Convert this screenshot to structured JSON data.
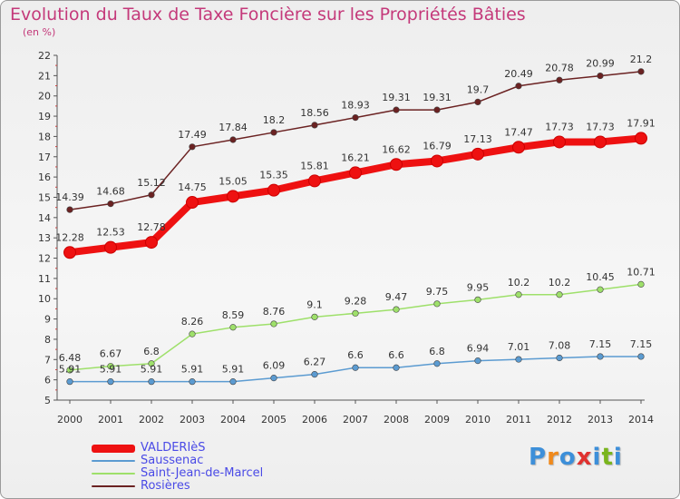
{
  "title": "Evolution du Taux de Taxe Foncière sur les Propriétés Bâties",
  "unit": "(en %)",
  "logo": {
    "letters": [
      "P",
      "r",
      "o",
      "x",
      "i",
      "t",
      "i"
    ],
    "colors": [
      "#3d8fd9",
      "#f08a1c",
      "#3d8fd9",
      "#e0312f",
      "#3d8fd9",
      "#7ab51d",
      "#3d8fd9"
    ]
  },
  "chart_data": {
    "type": "line",
    "title": "Evolution du Taux de Taxe Foncière sur les Propriétés Bâties",
    "ylabel": "(en %)",
    "xlabel": "",
    "x": [
      "2000",
      "2001",
      "2002",
      "2003",
      "2004",
      "2005",
      "2006",
      "2007",
      "2008",
      "2009",
      "2010",
      "2011",
      "2012",
      "2013",
      "2014"
    ],
    "ylim": [
      5,
      22
    ],
    "yticks": [
      "5",
      "6",
      "7",
      "8",
      "9",
      "10",
      "11",
      "12",
      "13",
      "14",
      "15",
      "16",
      "17",
      "18",
      "19",
      "20",
      "21",
      "22"
    ],
    "grid": false,
    "legend_position": "bottom-left",
    "series": [
      {
        "name": "VALDERIèS",
        "color": "#ee1111",
        "width": 8,
        "values": [
          12.28,
          12.53,
          12.78,
          14.75,
          15.05,
          15.35,
          15.81,
          16.21,
          16.62,
          16.79,
          17.13,
          17.47,
          17.73,
          17.73,
          17.91
        ],
        "labels": [
          "12.28",
          "12.53",
          "12.78",
          "14.75",
          "15.05",
          "15.35",
          "15.81",
          "16.21",
          "16.62",
          "16.79",
          "17.13",
          "17.47",
          "17.73",
          "17.73",
          "17.91"
        ]
      },
      {
        "name": "Saussenac",
        "color": "#5b9bd1",
        "width": 1.5,
        "values": [
          5.91,
          5.91,
          5.91,
          5.91,
          5.91,
          6.09,
          6.27,
          6.6,
          6.6,
          6.8,
          6.94,
          7.01,
          7.08,
          7.15,
          7.15
        ],
        "labels": [
          "5.91",
          "5.91",
          "5.91",
          "5.91",
          "5.91",
          "6.09",
          "6.27",
          "6.6",
          "6.6",
          "6.8",
          "6.94",
          "7.01",
          "7.08",
          "7.15",
          "7.15"
        ]
      },
      {
        "name": "Saint-Jean-de-Marcel",
        "color": "#9ee06a",
        "width": 1.5,
        "values": [
          6.48,
          6.67,
          6.8,
          8.26,
          8.59,
          8.76,
          9.1,
          9.28,
          9.47,
          9.75,
          9.95,
          10.2,
          10.2,
          10.45,
          10.71
        ],
        "labels": [
          "6.48",
          "6.67",
          "6.8",
          "8.26",
          "8.59",
          "8.76",
          "9.1",
          "9.28",
          "9.47",
          "9.75",
          "9.95",
          "10.2",
          "10.2",
          "10.45",
          "10.71"
        ]
      },
      {
        "name": "Rosières",
        "color": "#6b2222",
        "width": 1.5,
        "values": [
          14.39,
          14.68,
          15.12,
          17.49,
          17.84,
          18.2,
          18.56,
          18.93,
          19.31,
          19.31,
          19.7,
          20.49,
          20.78,
          20.99,
          21.2
        ],
        "labels": [
          "14.39",
          "14.68",
          "15.12",
          "17.49",
          "17.84",
          "18.2",
          "18.56",
          "18.93",
          "19.31",
          "19.31",
          "19.7",
          "20.49",
          "20.78",
          "20.99",
          "21.2"
        ]
      }
    ]
  }
}
